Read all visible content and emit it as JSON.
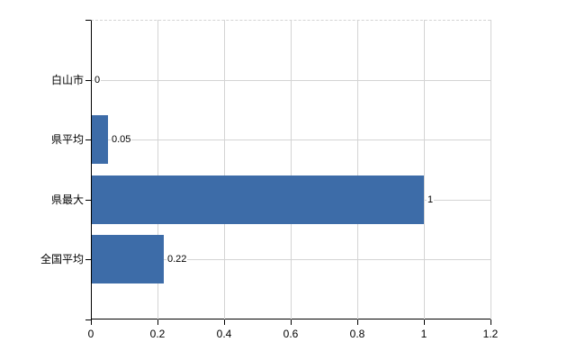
{
  "chart_data": {
    "type": "bar",
    "orientation": "horizontal",
    "title": "",
    "categories": [
      "白山市",
      "県平均",
      "県最大",
      "全国平均"
    ],
    "values": [
      0,
      0.05,
      1,
      0.22
    ],
    "value_labels": [
      "0",
      "0.05",
      "1",
      "0.22"
    ],
    "x_ticks": [
      0,
      0.2,
      0.4,
      0.6,
      0.8,
      1,
      1.2
    ],
    "x_tick_labels": [
      "0",
      "0.2",
      "0.4",
      "0.6",
      "0.8",
      "1",
      "1.2"
    ],
    "xlim": [
      0,
      1.2
    ],
    "grid": true,
    "legend": false,
    "xlabel": "",
    "ylabel": "",
    "colors": {
      "bar": "#3d6ca8",
      "grid": "#d4d4d4",
      "axis": "#000000",
      "text": "#000000",
      "background": "#ffffff"
    }
  }
}
